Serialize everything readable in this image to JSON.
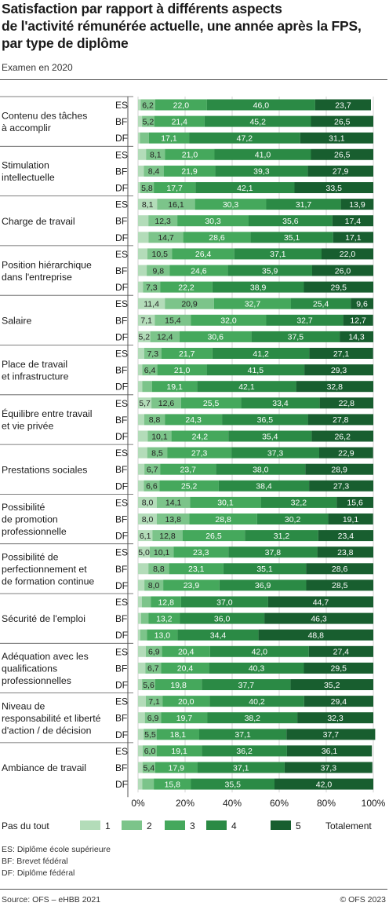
{
  "header": {
    "title_lines": [
      "Satisfaction par rapport à différents aspects",
      "de l'activité rémunérée actuelle, une année après la FPS,",
      "par type de diplôme"
    ],
    "subtitle": "Examen en 2020"
  },
  "colors": {
    "s1": "#b3dcb9",
    "s2": "#7cc48a",
    "s3": "#45a85c",
    "s4": "#2b8a45",
    "s5": "#185e2f"
  },
  "chart_data": {
    "type": "bar",
    "orientation": "horizontal",
    "stacked": true,
    "percent": true,
    "xlim": [
      0,
      100
    ],
    "xticks": [
      "0%",
      "20%",
      "40%",
      "60%",
      "80%",
      "100%"
    ],
    "series_names": [
      "1",
      "2",
      "3",
      "4",
      "5"
    ],
    "legend": {
      "left_label": "Pas du tout",
      "right_label": "Totalement",
      "items": [
        "1",
        "2",
        "3",
        "4",
        "5"
      ]
    },
    "groups": [
      {
        "label": [
          "Contenu des tâches",
          "à accomplir"
        ],
        "rows": [
          {
            "code": "ES",
            "values": [
              1.1,
              6.2,
              22.0,
              46.0,
              23.7
            ]
          },
          {
            "code": "BF",
            "values": [
              1.7,
              5.2,
              21.4,
              45.2,
              26.5
            ]
          },
          {
            "code": "DF",
            "values": [
              0.8,
              3.8,
              17.1,
              47.2,
              31.1
            ]
          }
        ]
      },
      {
        "label": [
          "Stimulation",
          "intellectuelle"
        ],
        "rows": [
          {
            "code": "ES",
            "values": [
              3.4,
              8.1,
              21.0,
              41.0,
              26.5
            ]
          },
          {
            "code": "BF",
            "values": [
              2.5,
              8.4,
              21.9,
              39.3,
              27.9
            ]
          },
          {
            "code": "DF",
            "values": [
              0.9,
              5.8,
              17.7,
              42.1,
              33.5
            ]
          }
        ]
      },
      {
        "label": [
          "Charge de travail"
        ],
        "rows": [
          {
            "code": "ES",
            "values": [
              8.1,
              16.1,
              30.3,
              31.7,
              13.9
            ]
          },
          {
            "code": "BF",
            "values": [
              4.4,
              12.3,
              30.3,
              35.6,
              17.4
            ]
          },
          {
            "code": "DF",
            "values": [
              4.5,
              14.7,
              28.6,
              35.1,
              17.1
            ]
          }
        ]
      },
      {
        "label": [
          "Position hiérarchique",
          "dans l'entreprise"
        ],
        "rows": [
          {
            "code": "ES",
            "values": [
              4.0,
              10.5,
              26.4,
              37.1,
              22.0
            ]
          },
          {
            "code": "BF",
            "values": [
              3.7,
              9.8,
              24.6,
              35.9,
              26.0
            ]
          },
          {
            "code": "DF",
            "values": [
              2.1,
              7.3,
              22.2,
              38.9,
              29.5
            ]
          }
        ]
      },
      {
        "label": [
          "Salaire"
        ],
        "rows": [
          {
            "code": "ES",
            "values": [
              11.4,
              20.9,
              32.7,
              25.4,
              9.6
            ]
          },
          {
            "code": "BF",
            "values": [
              7.1,
              15.4,
              32.0,
              32.7,
              12.7
            ]
          },
          {
            "code": "DF",
            "values": [
              5.2,
              12.4,
              30.6,
              37.5,
              14.3
            ]
          }
        ]
      },
      {
        "label": [
          "Place de travail",
          "et infrastructure"
        ],
        "rows": [
          {
            "code": "ES",
            "values": [
              2.6,
              7.3,
              21.7,
              41.2,
              27.1
            ]
          },
          {
            "code": "BF",
            "values": [
              1.8,
              6.4,
              21.0,
              41.5,
              29.3
            ]
          },
          {
            "code": "DF",
            "values": [
              1.8,
              4.2,
              19.1,
              42.1,
              32.8
            ]
          }
        ]
      },
      {
        "label": [
          "Équilibre entre travail",
          "et vie privée"
        ],
        "rows": [
          {
            "code": "ES",
            "values": [
              5.7,
              12.6,
              25.5,
              33.4,
              22.8
            ]
          },
          {
            "code": "BF",
            "values": [
              2.6,
              8.8,
              24.3,
              36.5,
              27.8
            ]
          },
          {
            "code": "DF",
            "values": [
              4.1,
              10.1,
              24.2,
              35.4,
              26.2
            ]
          }
        ]
      },
      {
        "label": [
          "Prestations sociales"
        ],
        "rows": [
          {
            "code": "ES",
            "values": [
              3.9,
              8.5,
              27.3,
              37.3,
              22.9
            ]
          },
          {
            "code": "BF",
            "values": [
              2.7,
              6.7,
              23.7,
              38.0,
              28.9
            ]
          },
          {
            "code": "DF",
            "values": [
              2.5,
              6.6,
              25.2,
              38.4,
              27.3
            ]
          }
        ]
      },
      {
        "label": [
          "Possibilité",
          "de promotion",
          "professionnelle"
        ],
        "rows": [
          {
            "code": "ES",
            "values": [
              8.0,
              14.1,
              30.1,
              32.2,
              15.6
            ]
          },
          {
            "code": "BF",
            "values": [
              8.0,
              13.8,
              28.8,
              30.2,
              19.1
            ]
          },
          {
            "code": "DF",
            "values": [
              6.1,
              12.8,
              26.5,
              31.2,
              23.4
            ]
          }
        ]
      },
      {
        "label": [
          "Possibilité de",
          "perfectionnement et",
          "de formation continue"
        ],
        "rows": [
          {
            "code": "ES",
            "values": [
              5.0,
              10.1,
              23.3,
              37.8,
              23.8
            ]
          },
          {
            "code": "BF",
            "values": [
              4.4,
              8.8,
              23.1,
              35.1,
              28.6
            ]
          },
          {
            "code": "DF",
            "values": [
              2.7,
              8.0,
              23.9,
              36.9,
              28.5
            ]
          }
        ]
      },
      {
        "label": [
          "Sécurité de l'emploi"
        ],
        "rows": [
          {
            "code": "ES",
            "values": [
              1.6,
              3.9,
              12.8,
              37.0,
              44.7
            ]
          },
          {
            "code": "BF",
            "values": [
              1.3,
              3.2,
              13.2,
              36.0,
              46.3
            ]
          },
          {
            "code": "DF",
            "values": [
              0.9,
              2.9,
              13.0,
              34.4,
              48.8
            ]
          }
        ]
      },
      {
        "label": [
          "Adéquation avec les",
          "qualifications",
          "professionnelles"
        ],
        "rows": [
          {
            "code": "ES",
            "values": [
              3.3,
              6.9,
              20.4,
              42.0,
              27.4
            ]
          },
          {
            "code": "BF",
            "values": [
              3.1,
              6.7,
              20.4,
              40.3,
              29.5
            ]
          },
          {
            "code": "DF",
            "values": [
              1.7,
              5.6,
              19.8,
              37.7,
              35.2
            ]
          }
        ]
      },
      {
        "label": [
          "Niveau de",
          "responsabilité et liberté",
          "d'action / de décision"
        ],
        "rows": [
          {
            "code": "ES",
            "values": [
              3.3,
              7.1,
              20.0,
              40.2,
              29.4
            ]
          },
          {
            "code": "BF",
            "values": [
              2.9,
              6.9,
              19.7,
              38.2,
              32.3
            ]
          },
          {
            "code": "DF",
            "values": [
              2.4,
              5.5,
              18.1,
              37.1,
              37.7
            ]
          }
        ]
      },
      {
        "label": [
          "Ambiance de travail"
        ],
        "rows": [
          {
            "code": "ES",
            "values": [
              2.0,
              6.0,
              19.1,
              36.2,
              36.1
            ]
          },
          {
            "code": "BF",
            "values": [
              1.9,
              5.4,
              17.9,
              37.1,
              37.3
            ]
          },
          {
            "code": "DF",
            "values": [
              1.8,
              4.9,
              15.8,
              35.5,
              42.0
            ]
          }
        ]
      }
    ]
  },
  "footnotes": [
    "ES: Diplôme école supérieure",
    "BF: Brevet fédéral",
    "DF: Diplôme fédéral"
  ],
  "footer": {
    "source": "Source: OFS – eHBB 2021",
    "copyright": "© OFS 2023"
  }
}
